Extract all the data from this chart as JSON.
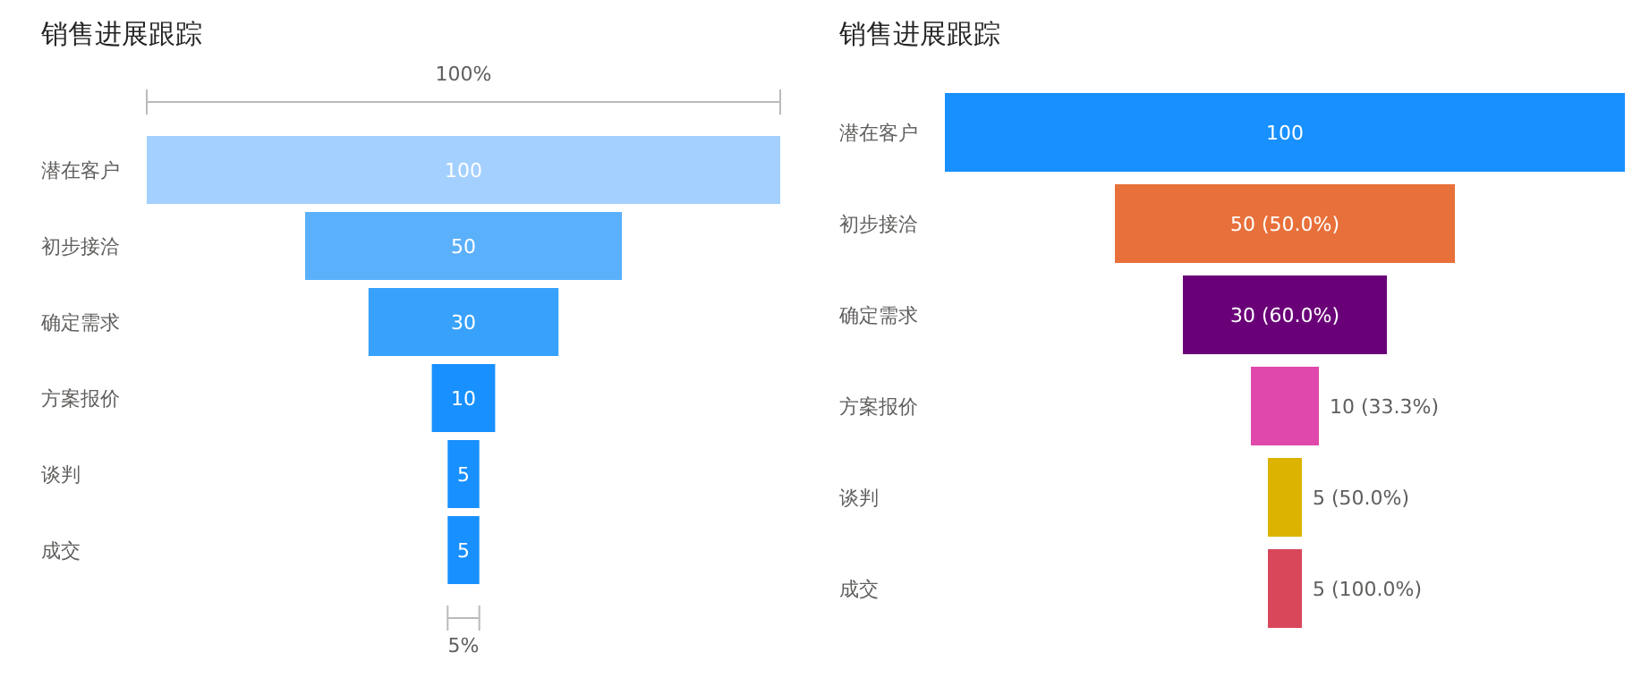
{
  "chart_data": [
    {
      "type": "other",
      "title": "销售进展跟踪",
      "categories": [
        "潜在客户",
        "初步接洽",
        "确定需求",
        "方案报价",
        "谈判",
        "成交"
      ],
      "values": [
        100,
        50,
        30,
        10,
        5,
        5
      ],
      "colors": [
        "#a3d0ff",
        "#5bb0fb",
        "#38a1fb",
        "#1890ff",
        "#1890ff",
        "#1890ff"
      ],
      "data_labels": true,
      "annotations": [
        "100%",
        "5%"
      ]
    },
    {
      "type": "other",
      "title": "销售进展跟踪",
      "categories": [
        "潜在客户",
        "初步接洽",
        "确定需求",
        "方案报价",
        "谈判",
        "成交"
      ],
      "values": [
        100,
        50,
        30,
        10,
        5,
        5
      ],
      "colors": [
        "#1890ff",
        "#e8703a",
        "#6a0078",
        "#e048ab",
        "#dcb300",
        "#d9475a"
      ],
      "value_labels": [
        "100",
        "50 (50.0%)",
        "30 (60.0%)",
        "10 (33.3%)",
        "5 (50.0%)",
        "5 (100.0%)"
      ]
    }
  ]
}
